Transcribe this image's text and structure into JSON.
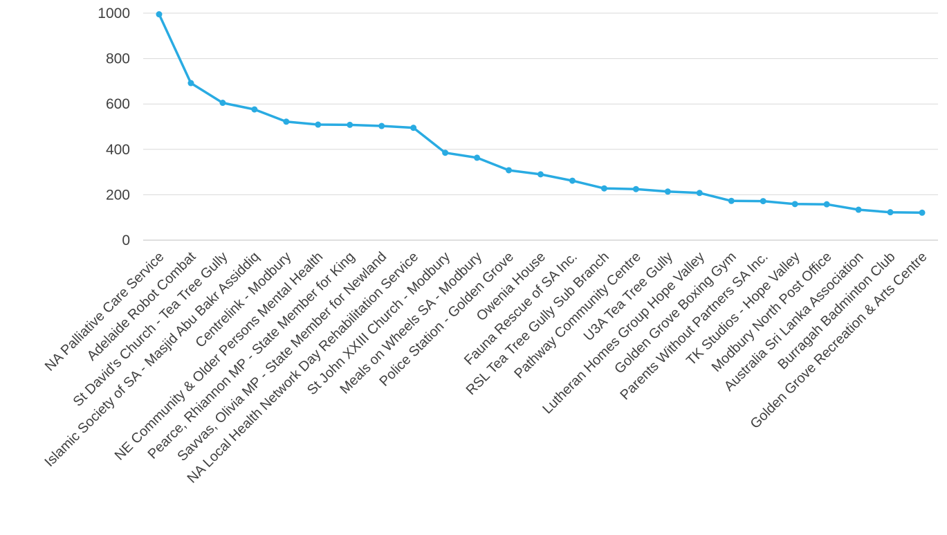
{
  "chart_data": {
    "type": "line",
    "title": "",
    "xlabel": "",
    "ylabel": "",
    "ylim": [
      0,
      1000
    ],
    "yticks": [
      0,
      200,
      400,
      600,
      800,
      1000
    ],
    "grid": true,
    "legend": "none",
    "categories": [
      "NA Palliative Care Service",
      "Adelaide Robot Combat",
      "St David's Church - Tea Tree Gully",
      "Islamic Society of SA - Masjid Abu Bakr Assiddiq",
      "Centrelink - Modbury",
      "NE Community & Older Persons Mental Health",
      "Pearce, Rhiannon MP - State Member for King",
      "Savvas, Olivia MP - State Member for Newland",
      "NA Local Health Network Day Rehabilitation Service",
      "St John XXIII Church - Modbury",
      "Meals on Wheels SA - Modbury",
      "Police Station - Golden Grove",
      "Owenia House",
      "Fauna Rescue of SA Inc.",
      "RSL Tea Tree Gully Sub Branch",
      "Pathway Community Centre",
      "U3A Tea Tree Gully",
      "Lutheran Homes Group Hope Valley",
      "Golden Grove Boxing Gym",
      "Parents Without Partners SA Inc.",
      "TK Studios - Hope Valley",
      "Modbury North Post Office",
      "Australia Sri Lanka Association",
      "Burragah Badminton Club",
      "Golden Grove Recreation & Arts Centre"
    ],
    "series": [
      {
        "color": "#29abe2",
        "values": [
          995,
          692,
          605,
          576,
          522,
          509,
          508,
          503,
          495,
          385,
          363,
          308,
          290,
          262,
          228,
          225,
          214,
          208,
          173,
          172,
          159,
          158,
          134,
          123,
          121
        ]
      }
    ]
  }
}
